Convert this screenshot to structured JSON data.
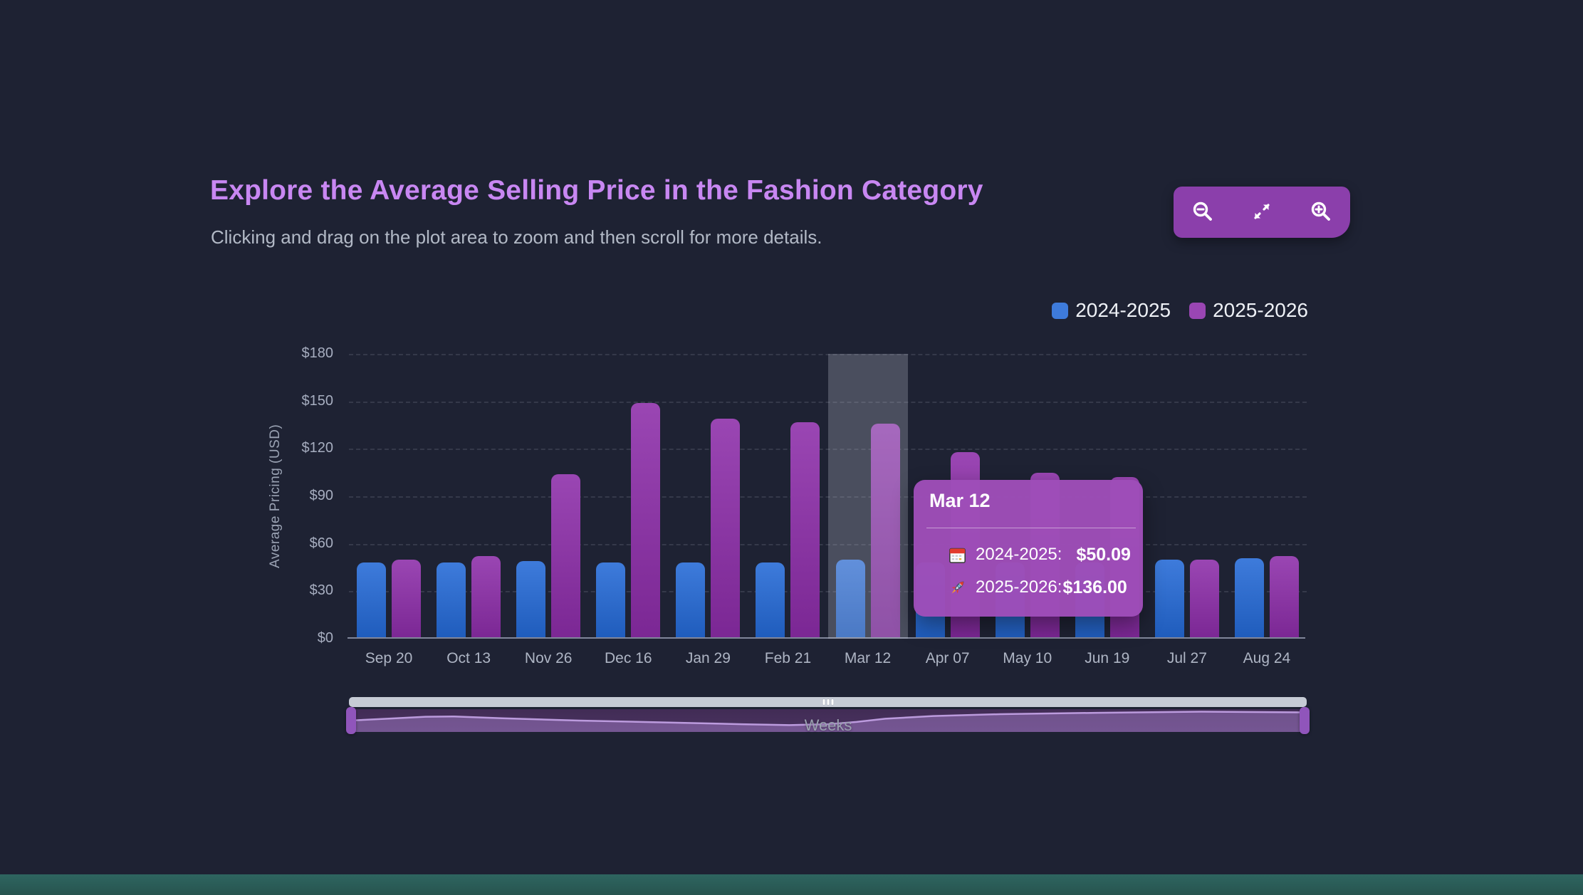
{
  "page": {
    "title": "Explore the Average Selling Price in the Fashion Category",
    "subtitle": "Clicking and drag on the plot area to zoom and then scroll for more details."
  },
  "toolbar": {
    "buttons": [
      {
        "name": "zoom-out",
        "icon": "magnifier-minus-icon"
      },
      {
        "name": "reset-zoom",
        "icon": "expand-arrows-icon"
      },
      {
        "name": "zoom-in",
        "icon": "magnifier-plus-icon"
      }
    ]
  },
  "legend": [
    {
      "label": "2024-2025",
      "color": "#3e7bdb"
    },
    {
      "label": "2025-2026",
      "color": "#9a46b3"
    }
  ],
  "chart_data": {
    "type": "bar",
    "title": "Explore the Average Selling Price in the Fashion Category",
    "xlabel": "Weeks",
    "ylabel": "Average Pricing (USD)",
    "ylim": [
      0,
      180
    ],
    "ytick_step": 30,
    "ytick_labels": [
      "$0",
      "$30",
      "$60",
      "$90",
      "$120",
      "$150",
      "$180"
    ],
    "grid": "dashed-horizontal",
    "legend_position": "top-right",
    "categories": [
      "Sep 20",
      "Oct 13",
      "Nov 26",
      "Dec 16",
      "Jan 29",
      "Feb 21",
      "Mar 12",
      "Apr 07",
      "May 10",
      "Jun 19",
      "Jul 27",
      "Aug 24"
    ],
    "series": [
      {
        "name": "2024-2025",
        "color": "#3e7bdb",
        "values": [
          48,
          48,
          49,
          48,
          48,
          48,
          50.09,
          48,
          48,
          48,
          50,
          51
        ]
      },
      {
        "name": "2025-2026",
        "color": "#9a46b3",
        "values": [
          50,
          52,
          104,
          149,
          139,
          137,
          136,
          118,
          105,
          102,
          50,
          52
        ]
      }
    ],
    "highlighted_category": "Mar 12"
  },
  "tooltip": {
    "title": "Mar 12",
    "rows": [
      {
        "icon": "calendar-icon",
        "label": "2024-2025:",
        "value": "$50.09"
      },
      {
        "icon": "rocket-icon",
        "label": "2025-2026:",
        "value": "$136.00"
      }
    ]
  },
  "navigator": {
    "xlabel": "Weeks",
    "profile": [
      [
        0,
        0.5
      ],
      [
        0.04,
        0.42
      ],
      [
        0.08,
        0.33
      ],
      [
        0.11,
        0.32
      ],
      [
        0.16,
        0.4
      ],
      [
        0.24,
        0.5
      ],
      [
        0.33,
        0.58
      ],
      [
        0.41,
        0.66
      ],
      [
        0.46,
        0.7
      ],
      [
        0.5,
        0.66
      ],
      [
        0.53,
        0.56
      ],
      [
        0.56,
        0.42
      ],
      [
        0.61,
        0.3
      ],
      [
        0.68,
        0.22
      ],
      [
        0.78,
        0.16
      ],
      [
        0.89,
        0.11
      ],
      [
        1,
        0.14
      ]
    ]
  },
  "colors": {
    "background": "#1e2233",
    "title": "#c887f2",
    "subtitle": "#b2b9c6",
    "toolbar": "#8b3fab",
    "tooltip_bg": "#9e4db8",
    "axis_text": "#a7aec0",
    "highlight_band": "rgba(200,205,220,0.26)",
    "footer": "#2b5f5a"
  }
}
